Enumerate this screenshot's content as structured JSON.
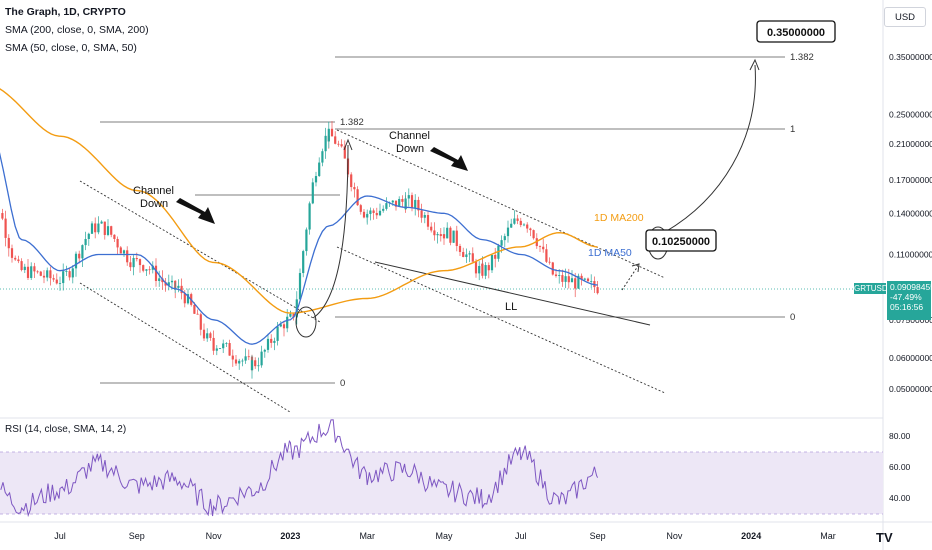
{
  "legend": {
    "title": "The Graph, 1D, CRYPTO",
    "sma200": "SMA (200, close, 0, SMA, 200)",
    "sma50": "SMA (50, close, 0, SMA, 50)",
    "rsi": "RSI (14, close, SMA, 14, 2)"
  },
  "currency_button": "USD",
  "symbol_tag": "GRTUSD",
  "price_tag": {
    "price": "0.09098455",
    "change": "-47.49%",
    "countdown": "05:16:56"
  },
  "logo": "TV",
  "colors": {
    "up": "#26a69a",
    "down": "#ef5350",
    "ma200": "#f39c12",
    "ma50": "#3d6fd1",
    "rsi": "#7e57c2",
    "rsi_band": "#ede7f6"
  },
  "annotations": {
    "channel_down_1": [
      "Channel",
      "Down"
    ],
    "channel_down_2": [
      "Channel",
      "Down"
    ],
    "ll": "LL",
    "ma200_label": "1D MA200",
    "ma50_label": "1D MA50",
    "target_box": "0.35000000",
    "mid_box": "0.10250000",
    "fib_left": {
      "top": "1.382",
      "bottom": "0"
    },
    "fib_right": {
      "top": "1.382",
      "one": "1",
      "zero": "0"
    },
    "fib_mid_top": "1.382"
  },
  "chart_data": {
    "type": "line",
    "symbol": "GRTUSD",
    "scale": "log",
    "price_axis_ticks": [
      "0.35000000",
      "0.25000000",
      "0.21000000",
      "0.17000000",
      "0.14000000",
      "0.11000000",
      "0.07500000",
      "0.06000000",
      "0.05000000"
    ],
    "x_axis_ticks": [
      "Jul",
      "Sep",
      "Nov",
      "2023",
      "Mar",
      "May",
      "Jul",
      "Sep",
      "Nov",
      "2024",
      "Mar"
    ],
    "series": [
      {
        "name": "SMA (200, close, 0, SMA, 200)",
        "color": "#f39c12",
        "points": [
          [
            "May-2022",
            0.3
          ],
          [
            "Jul-2022",
            0.22
          ],
          [
            "Sep-2022",
            0.16
          ],
          [
            "Nov-2022",
            0.105
          ],
          [
            "Jan-2023",
            0.078
          ],
          [
            "Mar-2023",
            0.085
          ],
          [
            "May-2023",
            0.1
          ],
          [
            "Jul-2023",
            0.115
          ],
          [
            "Aug-2023",
            0.125
          ],
          [
            "Sep-2023",
            0.115
          ]
        ]
      },
      {
        "name": "SMA (50, close, 0, SMA, 50)",
        "color": "#3d6fd1",
        "points": [
          [
            "May-2022",
            0.25
          ],
          [
            "Jun-2022",
            0.12
          ],
          [
            "Jul-2022",
            0.1
          ],
          [
            "Aug-2022",
            0.11
          ],
          [
            "Sep-2022",
            0.11
          ],
          [
            "Oct-2022",
            0.09
          ],
          [
            "Nov-2022",
            0.075
          ],
          [
            "Dec-2022",
            0.065
          ],
          [
            "Jan-2023",
            0.075
          ],
          [
            "Feb-2023",
            0.13
          ],
          [
            "Mar-2023",
            0.155
          ],
          [
            "Apr-2023",
            0.145
          ],
          [
            "May-2023",
            0.14
          ],
          [
            "Jun-2023",
            0.12
          ],
          [
            "Jul-2023",
            0.11
          ],
          [
            "Aug-2023",
            0.1
          ],
          [
            "Sep-2023",
            0.092
          ]
        ]
      },
      {
        "name": "GRTUSD close",
        "color": "#26a69a",
        "points": [
          [
            "May-2022",
            0.17
          ],
          [
            "Jun-2022",
            0.1
          ],
          [
            "Jul-2022",
            0.095
          ],
          [
            "Aug-2022",
            0.13
          ],
          [
            "Sep-2022",
            0.105
          ],
          [
            "Oct-2022",
            0.09
          ],
          [
            "Nov-2022",
            0.065
          ],
          [
            "Dec-2022",
            0.058
          ],
          [
            "Jan-2023",
            0.075
          ],
          [
            "Feb-2023",
            0.22
          ],
          [
            "Mar-2023",
            0.14
          ],
          [
            "Apr-2023",
            0.15
          ],
          [
            "May-2023",
            0.125
          ],
          [
            "Jun-2023",
            0.1
          ],
          [
            "Jul-2023",
            0.135
          ],
          [
            "Aug-2023",
            0.095
          ],
          [
            "Sep-2023",
            0.091
          ]
        ]
      }
    ],
    "rsi": {
      "axis_ticks": [
        "80.00",
        "60.00",
        "40.00"
      ],
      "band": [
        30,
        70
      ],
      "points": [
        [
          "May-2022",
          55
        ],
        [
          "Jun-2022",
          35
        ],
        [
          "Jul-2022",
          45
        ],
        [
          "Aug-2022",
          62
        ],
        [
          "Sep-2022",
          48
        ],
        [
          "Oct-2022",
          52
        ],
        [
          "Nov-2022",
          35
        ],
        [
          "Dec-2022",
          45
        ],
        [
          "Jan-2023",
          70
        ],
        [
          "Feb-2023",
          85
        ],
        [
          "Mar-2023",
          55
        ],
        [
          "Apr-2023",
          58
        ],
        [
          "May-2023",
          45
        ],
        [
          "Jun-2023",
          40
        ],
        [
          "Jul-2023",
          68
        ],
        [
          "Aug-2023",
          38
        ],
        [
          "Sep-2023",
          55
        ]
      ]
    }
  }
}
